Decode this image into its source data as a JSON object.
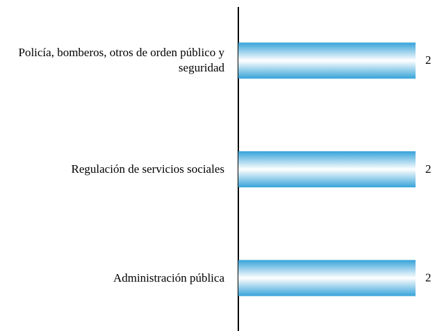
{
  "chart_data": {
    "type": "hbar",
    "categories": [
      "Policía, bomberos, otros de orden público y seguridad",
      "Regulación de servicios sociales",
      "Administración pública"
    ],
    "values": [
      2,
      2,
      2
    ],
    "color": "#36a3d9"
  }
}
